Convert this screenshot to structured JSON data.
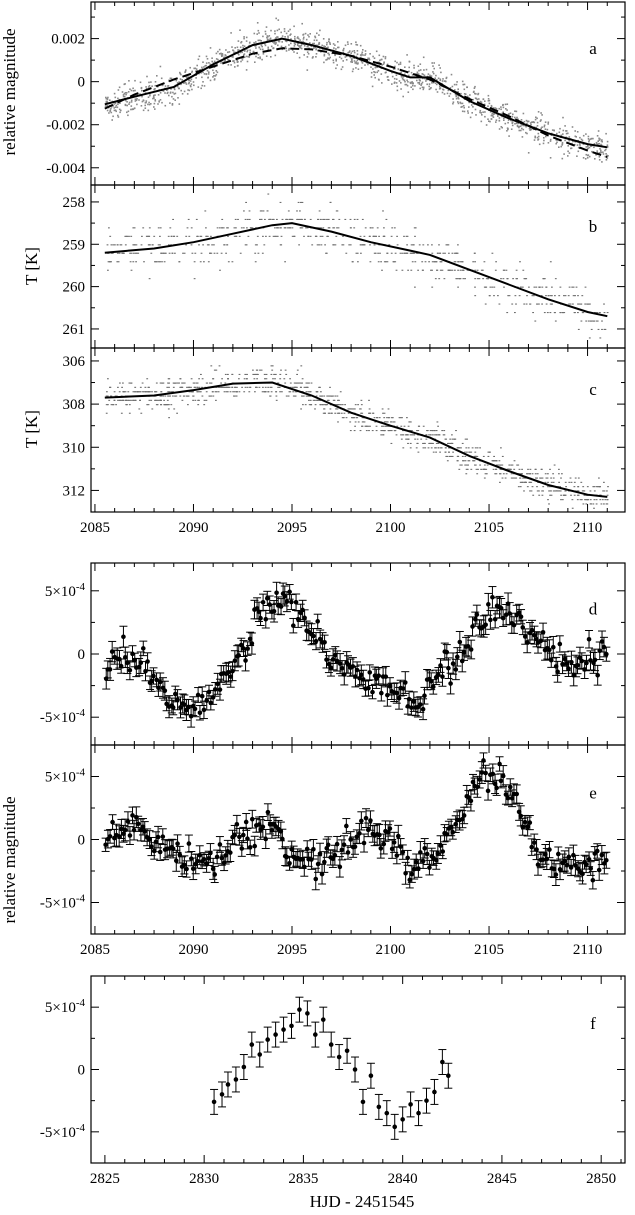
{
  "figure": {
    "xlabel_bottom": "HJD - 2451545",
    "ylabel_mag_top": "relative magnitude",
    "ylabel_mag_mid": "relative magnitude",
    "ylabel_temp": "T [K]"
  },
  "chart_data": [
    {
      "id": "a",
      "panel_label": "a",
      "type": "scatter",
      "ylabel": "relative magnitude",
      "xlim": [
        2084.8,
        2111.9
      ],
      "ylim": [
        -0.0048,
        0.0037
      ],
      "yticks": [
        0.002,
        0,
        -0.002,
        -0.004
      ],
      "ytick_labels": [
        "0.002",
        "0",
        "-0.002",
        "-0.004"
      ],
      "xticks": [
        2085,
        2090,
        2095,
        2100,
        2105,
        2110
      ],
      "scatter_points": {
        "x_range": [
          2085.5,
          2111
        ],
        "n": 1400,
        "spread": 0.0007,
        "color": "#8a8a8a"
      },
      "series": [
        {
          "style": "solid",
          "x": [
            2085.5,
            2087,
            2089,
            2091,
            2093,
            2094.5,
            2096,
            2098,
            2100,
            2101,
            2102,
            2104,
            2106,
            2108,
            2110,
            2111
          ],
          "y": [
            -0.00105,
            -0.0007,
            -0.00025,
            0.0008,
            0.0017,
            0.002,
            0.0017,
            0.0012,
            0.0005,
            0.0002,
            0.0002,
            -0.0009,
            -0.0017,
            -0.0024,
            -0.0029,
            -0.00305
          ]
        },
        {
          "style": "dashed",
          "x": [
            2085.5,
            2087,
            2089,
            2091,
            2093,
            2094.5,
            2096,
            2098,
            2100,
            2102,
            2104,
            2106,
            2108,
            2110,
            2111
          ],
          "y": [
            -0.00125,
            -0.0006,
            0.0001,
            0.0007,
            0.0013,
            0.00155,
            0.0015,
            0.0012,
            0.0007,
            0.0001,
            -0.0008,
            -0.0016,
            -0.0025,
            -0.0032,
            -0.0035
          ]
        }
      ]
    },
    {
      "id": "b",
      "panel_label": "b",
      "type": "scatter",
      "ylabel": "T [K]",
      "xlim": [
        2084.8,
        2111.9
      ],
      "ylim": [
        257.6,
        261.45
      ],
      "y_inverted": true,
      "yticks": [
        258,
        259,
        260,
        261
      ],
      "ytick_labels": [
        "258",
        "259",
        "260",
        "261"
      ],
      "xticks": [
        2085,
        2090,
        2095,
        2100,
        2105,
        2110
      ],
      "scatter_points": {
        "x_range": [
          2085.5,
          2111
        ],
        "n": 700,
        "quantum": 0.2,
        "spread": 0.6,
        "color": "#6e6e6e"
      },
      "series": [
        {
          "style": "solid",
          "x": [
            2085.5,
            2088,
            2090,
            2092,
            2094,
            2095,
            2097,
            2099,
            2101,
            2102,
            2104,
            2106,
            2108,
            2110,
            2111
          ],
          "y": [
            259.2,
            259.1,
            258.95,
            258.75,
            258.55,
            258.5,
            258.7,
            258.95,
            259.15,
            259.25,
            259.6,
            259.95,
            260.3,
            260.6,
            260.7
          ]
        }
      ]
    },
    {
      "id": "c",
      "panel_label": "c",
      "type": "scatter",
      "ylabel": "T [K]",
      "xlim": [
        2084.8,
        2111.9
      ],
      "ylim": [
        305.4,
        313.0
      ],
      "y_inverted": true,
      "yticks": [
        306,
        308,
        310,
        312
      ],
      "ytick_labels": [
        "306",
        "308",
        "310",
        "312"
      ],
      "xticks": [
        2085,
        2090,
        2095,
        2100,
        2105,
        2110
      ],
      "xtick_labels": [
        "2085",
        "2090",
        "2095",
        "2100",
        "2105",
        "2110"
      ],
      "scatter_points": {
        "x_range": [
          2085.5,
          2111
        ],
        "n": 1200,
        "quantum": 0.2,
        "spread": 0.7,
        "color": "#6e6e6e"
      },
      "series": [
        {
          "style": "solid",
          "x": [
            2085.5,
            2088,
            2090,
            2092,
            2094,
            2096,
            2098,
            2100,
            2102,
            2104,
            2106,
            2108,
            2110,
            2111
          ],
          "y": [
            307.7,
            307.6,
            307.35,
            307.05,
            307.0,
            307.6,
            308.4,
            309.0,
            309.55,
            310.4,
            311.1,
            311.75,
            312.2,
            312.3
          ]
        }
      ]
    },
    {
      "id": "d",
      "panel_label": "d",
      "type": "scatter",
      "error_bars": true,
      "xlim": [
        2084.8,
        2111.9
      ],
      "ylim": [
        -0.00072,
        0.00072
      ],
      "yticks": [
        0.0005,
        0,
        -0.0005
      ],
      "ytick_labels": [
        "5×10",
        "0",
        "-5×10"
      ],
      "ytick_exponents": [
        "-4",
        "",
        "-4"
      ],
      "xticks": [
        2085,
        2090,
        2095,
        2100,
        2105,
        2110
      ],
      "points": {
        "x_range": [
          2085.5,
          2111
        ],
        "n": 230,
        "noise": 6e-05,
        "err": 7e-05
      },
      "trend": {
        "x": [
          2085.5,
          2087,
          2088,
          2089.5,
          2090.5,
          2092,
          2093,
          2094,
          2094.8,
          2096,
          2097.5,
          2099,
          2100.5,
          2101.3,
          2102,
          2103,
          2104,
          2105,
          2106,
          2107.5,
          2109,
          2111
        ],
        "y": [
          -0.0001,
          -5e-05,
          -0.0002,
          -0.0004,
          -0.00042,
          -0.0001,
          0.0002,
          0.0004,
          0.00045,
          0.00015,
          -0.0001,
          -0.0002,
          -0.0003,
          -0.00045,
          -0.00025,
          -0.0001,
          0.0001,
          0.00035,
          0.0003,
          0.0001,
          -0.0001,
          0.0
        ]
      }
    },
    {
      "id": "e",
      "panel_label": "e",
      "type": "scatter",
      "error_bars": true,
      "ylabel": "relative magnitude",
      "xlim": [
        2084.8,
        2111.9
      ],
      "ylim": [
        -0.00075,
        0.00075
      ],
      "yticks": [
        0.0005,
        0,
        -0.0005
      ],
      "ytick_labels": [
        "5×10",
        "0",
        "-5×10"
      ],
      "ytick_exponents": [
        "-4",
        "",
        "-4"
      ],
      "xticks": [
        2085,
        2090,
        2095,
        2100,
        2105,
        2110
      ],
      "xtick_labels": [
        "2085",
        "2090",
        "2095",
        "2100",
        "2105",
        "2110"
      ],
      "points": {
        "x_range": [
          2085.5,
          2111
        ],
        "n": 230,
        "noise": 6e-05,
        "err": 7e-05
      },
      "trend": {
        "x": [
          2085.5,
          2087,
          2088,
          2090,
          2091,
          2093,
          2094,
          2095,
          2096,
          2097.5,
          2098.5,
          2100,
          2101,
          2102.5,
          2103.5,
          2104.5,
          2105.5,
          2106.3,
          2107.5,
          2108.5,
          2110,
          2111
        ],
        "y": [
          0.0,
          0.0001,
          0.0,
          -0.00018,
          -0.0002,
          0.0001,
          0.0001,
          -0.0001,
          -0.0002,
          -0.0001,
          0.0001,
          0.0,
          -0.0002,
          -0.0001,
          0.0002,
          0.00045,
          0.00048,
          0.0003,
          -0.0001,
          -0.0002,
          -0.00025,
          -0.0002
        ]
      }
    },
    {
      "id": "f",
      "panel_label": "f",
      "type": "scatter",
      "error_bars": true,
      "xlim": [
        2824.3,
        2851.2
      ],
      "ylim": [
        -0.00075,
        0.00075
      ],
      "yticks": [
        0.0005,
        0,
        -0.0005
      ],
      "ytick_labels": [
        "5×10",
        "0",
        "-5×10"
      ],
      "ytick_exponents": [
        "-4",
        "",
        "-4"
      ],
      "xticks": [
        2825,
        2830,
        2835,
        2840,
        2845,
        2850
      ],
      "xtick_labels": [
        "2825",
        "2830",
        "2835",
        "2840",
        "2845",
        "2850"
      ],
      "xlabel": "HJD - 2451545",
      "points_xy": {
        "x": [
          2830.5,
          2830.9,
          2831.2,
          2831.6,
          2832.0,
          2832.4,
          2832.8,
          2833.2,
          2833.6,
          2834.0,
          2834.4,
          2834.8,
          2835.2,
          2835.6,
          2836.0,
          2836.4,
          2836.8,
          2837.2,
          2837.6,
          2838.0,
          2838.4,
          2838.8,
          2839.2,
          2839.6,
          2840.0,
          2840.4,
          2840.8,
          2841.2,
          2841.6,
          2842.0,
          2842.3
        ],
        "y": [
          -0.00026,
          -0.0002,
          -0.00012,
          -8e-05,
          2e-05,
          0.0002,
          0.00012,
          0.00024,
          0.00028,
          0.00032,
          0.00035,
          0.00048,
          0.00045,
          0.00028,
          0.0004,
          0.0002,
          0.0001,
          0.00015,
          0.0,
          -0.00026,
          -5e-05,
          -0.0003,
          -0.00035,
          -0.00046,
          -0.0004,
          -0.00028,
          -0.00035,
          -0.00025,
          -0.00018,
          6e-05,
          -5e-05
        ],
        "err": 0.0001
      }
    }
  ]
}
